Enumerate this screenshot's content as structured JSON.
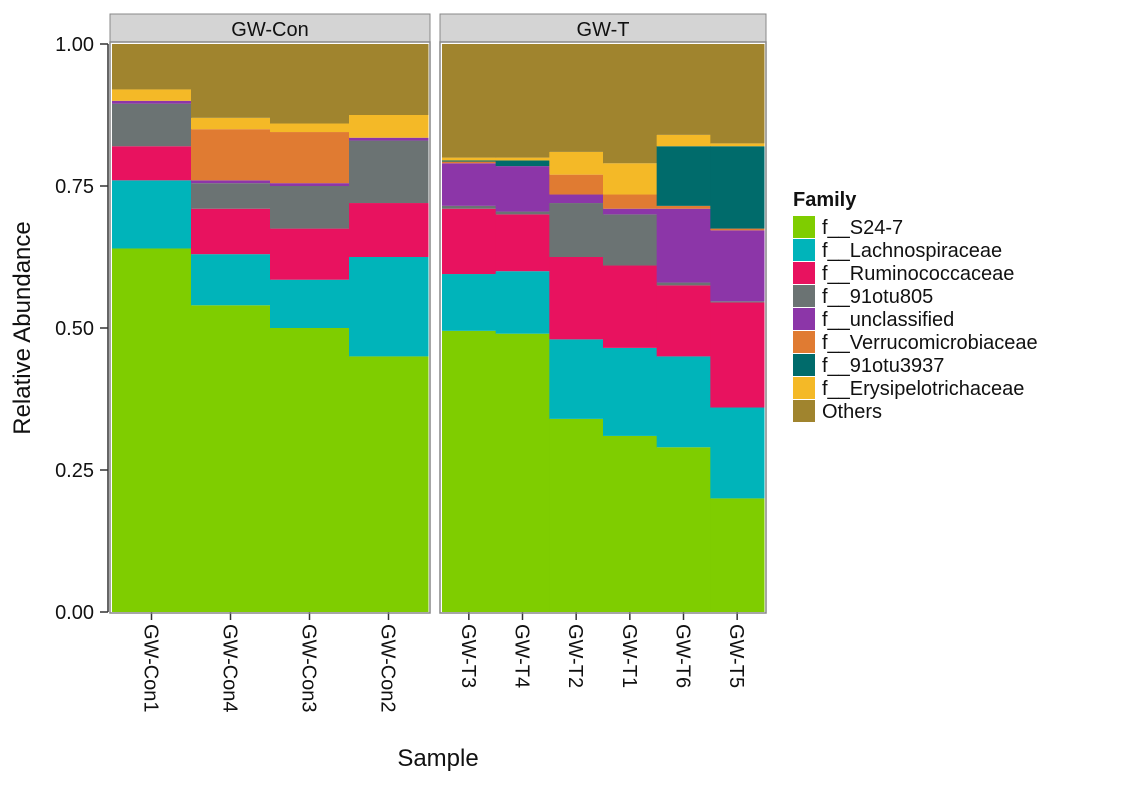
{
  "chart_data": {
    "type": "stacked_bar",
    "xlabel": "Sample",
    "ylabel": "Relative Abundance",
    "legend_title": "Family",
    "facets": [
      {
        "title": "GW-Con",
        "categories": [
          "GW-Con1",
          "GW-Con4",
          "GW-Con3",
          "GW-Con2"
        ]
      },
      {
        "title": "GW-T",
        "categories": [
          "GW-T3",
          "GW-T4",
          "GW-T2",
          "GW-T1",
          "GW-T6",
          "GW-T5"
        ]
      }
    ],
    "ylim": [
      0,
      1
    ],
    "yticks": [
      {
        "value": 0,
        "label": "0.00"
      },
      {
        "value": 0.25,
        "label": "0.25"
      },
      {
        "value": 0.5,
        "label": "0.50"
      },
      {
        "value": 0.75,
        "label": "0.75"
      },
      {
        "value": 1,
        "label": "1.00"
      }
    ],
    "series": [
      {
        "name": "f__S24-7",
        "color": "#7fcd00",
        "values": [
          0.64,
          0.54,
          0.5,
          0.45,
          0.495,
          0.49,
          0.34,
          0.31,
          0.29,
          0.2
        ]
      },
      {
        "name": "f__Lachnospiraceae",
        "color": "#00b4ba",
        "values": [
          0.12,
          0.09,
          0.085,
          0.175,
          0.1,
          0.11,
          0.14,
          0.155,
          0.16,
          0.16
        ]
      },
      {
        "name": "f__Ruminococcaceae",
        "color": "#e8125f",
        "values": [
          0.06,
          0.08,
          0.09,
          0.095,
          0.115,
          0.1,
          0.145,
          0.145,
          0.125,
          0.185
        ]
      },
      {
        "name": "f__91otu805",
        "color": "#6b7373",
        "values": [
          0.075,
          0.045,
          0.075,
          0.11,
          0.005,
          0.005,
          0.095,
          0.09,
          0.005,
          0.002
        ]
      },
      {
        "name": "f__unclassified",
        "color": "#8c36a8",
        "values": [
          0.005,
          0.005,
          0.005,
          0.005,
          0.075,
          0.08,
          0.015,
          0.01,
          0.13,
          0.125
        ]
      },
      {
        "name": "f__Verrucomicrobiaceae",
        "color": "#e07b32",
        "values": [
          0,
          0.09,
          0.09,
          0,
          0.003,
          0,
          0.035,
          0.025,
          0.005,
          0.003
        ]
      },
      {
        "name": "f__91otu3937",
        "color": "#006b6b",
        "values": [
          0,
          0,
          0,
          0,
          0.002,
          0.01,
          0,
          0,
          0.105,
          0.145
        ]
      },
      {
        "name": "f__Erysipelotrichaceae",
        "color": "#f4b927",
        "values": [
          0.02,
          0.02,
          0.015,
          0.04,
          0.005,
          0.005,
          0.04,
          0.055,
          0.02,
          0.005
        ]
      },
      {
        "name": "Others",
        "color": "#a0842e",
        "values": [
          0.08,
          0.13,
          0.14,
          0.125,
          0.2,
          0.2,
          0.19,
          0.21,
          0.16,
          0.175
        ]
      }
    ]
  }
}
